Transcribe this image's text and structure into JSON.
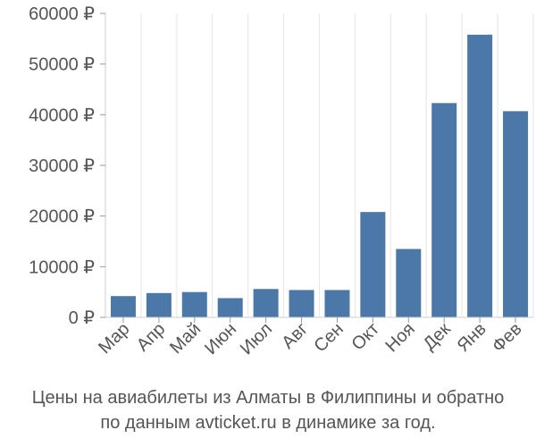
{
  "chart_data": {
    "type": "bar",
    "categories": [
      "Мар",
      "Апр",
      "Май",
      "Июн",
      "Июл",
      "Авг",
      "Сен",
      "Окт",
      "Ноя",
      "Дек",
      "Янв",
      "Фев"
    ],
    "values": [
      4200,
      4800,
      5000,
      3800,
      5600,
      5400,
      5400,
      20800,
      13500,
      42300,
      55800,
      40700
    ],
    "ylim": [
      0,
      60000
    ],
    "yticks": [
      0,
      10000,
      20000,
      30000,
      40000,
      50000,
      60000
    ],
    "ytick_labels": [
      "0 ₽",
      "10000 ₽",
      "20000 ₽",
      "30000 ₽",
      "40000 ₽",
      "50000 ₽",
      "60000 ₽"
    ],
    "grid": "vertical",
    "bar_color": "#4c78a8",
    "title": "",
    "xlabel": "",
    "ylabel": ""
  },
  "caption": {
    "line1": "Цены на авиабилеты из Алматы в Филиппины и обратно",
    "line2": "по данным avticket.ru в динамике за год."
  }
}
